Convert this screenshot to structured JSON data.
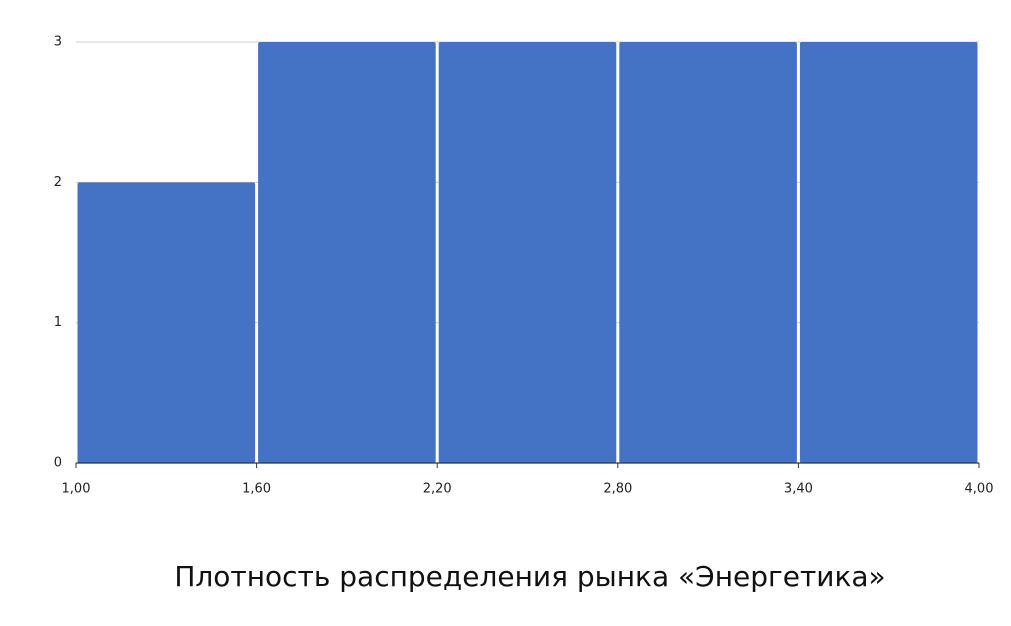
{
  "chart_data": {
    "type": "histogram",
    "title": "Плотность распределения рынка «Энергетика»",
    "bins": [
      1.0,
      1.6,
      2.2,
      2.8,
      3.4,
      4.0
    ],
    "values": [
      2,
      3,
      3,
      3,
      3
    ],
    "color": "#4472c4",
    "xlim": [
      1.0,
      4.0
    ],
    "xticks": [
      {
        "value": 1.0,
        "label": "1,00"
      },
      {
        "value": 1.6,
        "label": "1,60"
      },
      {
        "value": 2.2,
        "label": "2,20"
      },
      {
        "value": 2.8,
        "label": "2,80"
      },
      {
        "value": 3.4,
        "label": "3,40"
      },
      {
        "value": 4.0,
        "label": "4,00"
      }
    ],
    "ylim": [
      0,
      3
    ],
    "yticks": [
      0,
      1,
      2,
      3
    ],
    "grid": true
  }
}
